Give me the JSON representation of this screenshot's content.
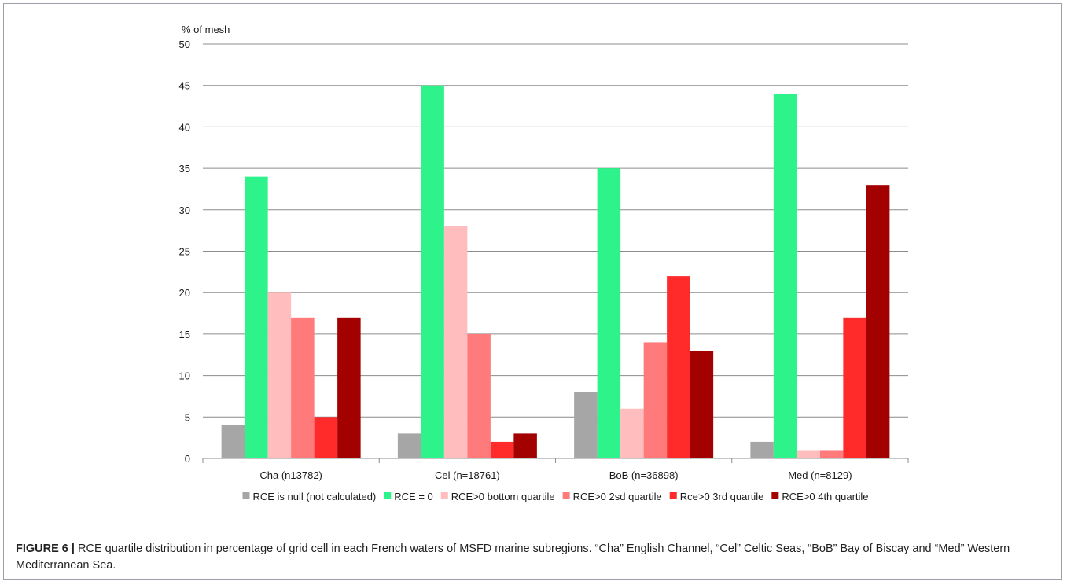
{
  "chart_data": {
    "type": "bar",
    "ylabel": "% of mesh",
    "ylim": [
      0,
      50
    ],
    "yticks": [
      0,
      5,
      10,
      15,
      20,
      25,
      30,
      35,
      40,
      45,
      50
    ],
    "grid": true,
    "legend_position": "bottom",
    "categories": [
      "Cha (n13782)",
      "Cel (n=18761)",
      "BoB (n=36898)",
      "Med (n=8129)"
    ],
    "series": [
      {
        "name": "RCE is null (not calculated)",
        "color": "#a6a6a6",
        "values": [
          4,
          3,
          8,
          2
        ]
      },
      {
        "name": "RCE = 0",
        "color": "#2ef28a",
        "values": [
          34,
          45,
          35,
          44
        ]
      },
      {
        "name": "RCE>0 bottom quartile",
        "color": "#ffbdbd",
        "values": [
          20,
          28,
          6,
          1
        ]
      },
      {
        "name": "RCE>0 2sd quartile",
        "color": "#ff7b7b",
        "values": [
          17,
          15,
          14,
          1
        ]
      },
      {
        "name": "Rce>0 3rd quartile",
        "color": "#ff2a2a",
        "values": [
          5,
          2,
          22,
          17
        ]
      },
      {
        "name": "RCE>0 4th quartile",
        "color": "#a30000",
        "values": [
          17,
          3,
          13,
          33
        ]
      }
    ]
  },
  "caption": {
    "label": "FIGURE 6 |",
    "text": " RCE quartile distribution in percentage of grid cell in each French waters of MSFD marine subregions. “Cha” English Channel, “Cel” Celtic Seas, “BoB” Bay of Biscay and “Med” Western Mediterranean Sea."
  }
}
